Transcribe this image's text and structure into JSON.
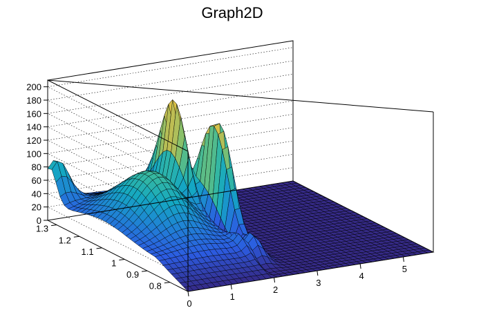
{
  "chart_data": {
    "type": "surface",
    "title": "Graph2D",
    "xlabel": "",
    "ylabel": "",
    "zlabel": "",
    "xlim": [
      0,
      5.7
    ],
    "ylim": [
      0.72,
      1.34
    ],
    "zlim": [
      0,
      210
    ],
    "x_ticks": [
      "0",
      "1",
      "2",
      "3",
      "4",
      "5"
    ],
    "y_ticks": [
      "0.8",
      "0.9",
      "1",
      "1.1",
      "1.2",
      "1.3"
    ],
    "z_ticks": [
      "0",
      "20",
      "40",
      "60",
      "80",
      "100",
      "120",
      "140",
      "160",
      "180",
      "200"
    ],
    "grid": true,
    "colormap": [
      "#352a87",
      "#2c5ce1",
      "#1f84d4",
      "#14a7c2",
      "#38b99e",
      "#85c06c",
      "#c7bd4f",
      "#f6c83a",
      "#f9fb0e"
    ],
    "peaks": [
      {
        "x": 1.9,
        "y": 1.32,
        "z": 130
      },
      {
        "x": 2.4,
        "y": 1.0,
        "z": 185
      },
      {
        "x": 2.45,
        "y": 1.1,
        "z": 200
      }
    ]
  }
}
